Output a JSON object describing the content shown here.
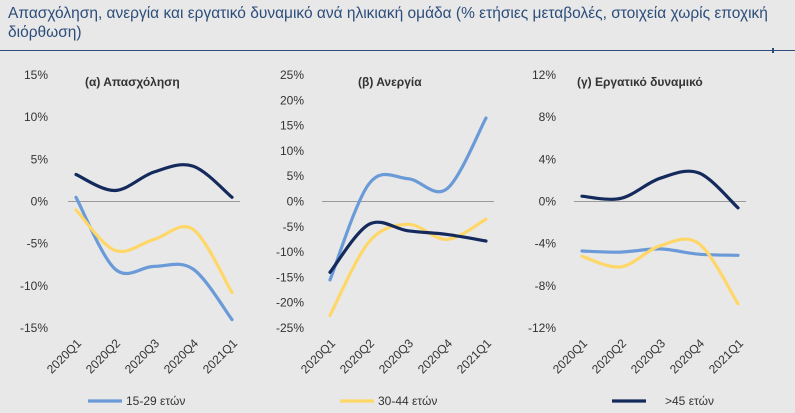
{
  "header": {
    "title": "Απασχόληση, ανεργία και εργατικό δυναμικό ανά ηλικιακή ομάδα (% ετήσιες μεταβολές, στοιχεία χωρίς εποχική διόρθωση)"
  },
  "legend": [
    {
      "name": "15-29 ετών",
      "color": "#6b9ad8"
    },
    {
      "name": "30-44 ετών",
      "color": "#ffd768"
    },
    {
      "name": ">45 ετών",
      "color": "#142a5c"
    }
  ],
  "chart_data": [
    {
      "type": "line",
      "title": "(α) Απασχόληση",
      "categories": [
        "2020Q1",
        "2020Q2",
        "2020Q3",
        "2020Q4",
        "2021Q1"
      ],
      "ylim": [
        -15,
        15
      ],
      "yticks": [
        -15,
        -10,
        -5,
        0,
        5,
        10,
        15
      ],
      "ytick_labels": [
        "-15%",
        "-10%",
        "-5%",
        "0%",
        "5%",
        "10%",
        "15%"
      ],
      "series": [
        {
          "name": "15-29 ετών",
          "color": "#6b9ad8",
          "values": [
            0.5,
            -8.0,
            -7.7,
            -8.0,
            -14.0
          ]
        },
        {
          "name": "30-44 ετών",
          "color": "#ffd768",
          "values": [
            -1.0,
            -5.8,
            -4.5,
            -3.3,
            -10.8
          ]
        },
        {
          "name": ">45 ετών",
          "color": "#142a5c",
          "values": [
            3.2,
            1.3,
            3.5,
            4.2,
            0.5
          ]
        }
      ]
    },
    {
      "type": "line",
      "title": "(β) Ανεργία",
      "categories": [
        "2020Q1",
        "2020Q2",
        "2020Q3",
        "2020Q4",
        "2021Q1"
      ],
      "ylim": [
        -25,
        25
      ],
      "yticks": [
        -25,
        -20,
        -15,
        -10,
        -5,
        0,
        5,
        10,
        15,
        20,
        25
      ],
      "ytick_labels": [
        "-25%",
        "-20%",
        "-15%",
        "-10%",
        "-5%",
        "0%",
        "5%",
        "10%",
        "15%",
        "20%",
        "25%"
      ],
      "series": [
        {
          "name": "15-29 ετών",
          "color": "#6b9ad8",
          "values": [
            -15.5,
            3.5,
            4.5,
            2.5,
            16.5
          ]
        },
        {
          "name": "30-44 ετών",
          "color": "#ffd768",
          "values": [
            -22.5,
            -8.0,
            -4.5,
            -7.5,
            -3.5
          ]
        },
        {
          "name": ">45 ετών",
          "color": "#142a5c",
          "values": [
            -14.0,
            -4.5,
            -5.8,
            -6.5,
            -7.8
          ]
        }
      ]
    },
    {
      "type": "line",
      "title": "(γ) Εργατικό δυναμικό",
      "categories": [
        "2020Q1",
        "2020Q2",
        "2020Q3",
        "2020Q4",
        "2021Q1"
      ],
      "ylim": [
        -12,
        12
      ],
      "yticks": [
        -12,
        -8,
        -4,
        0,
        4,
        8,
        12
      ],
      "ytick_labels": [
        "-12%",
        "-8%",
        "-4%",
        "0%",
        "4%",
        "8%",
        "12%"
      ],
      "series": [
        {
          "name": "15-29 ετών",
          "color": "#6b9ad8",
          "values": [
            -4.7,
            -4.8,
            -4.5,
            -5.0,
            -5.1
          ]
        },
        {
          "name": "30-44 ετών",
          "color": "#ffd768",
          "values": [
            -5.2,
            -6.2,
            -4.2,
            -4.0,
            -9.7
          ]
        },
        {
          "name": ">45 ετών",
          "color": "#142a5c",
          "values": [
            0.5,
            0.3,
            2.2,
            2.7,
            -0.6
          ]
        }
      ]
    }
  ]
}
